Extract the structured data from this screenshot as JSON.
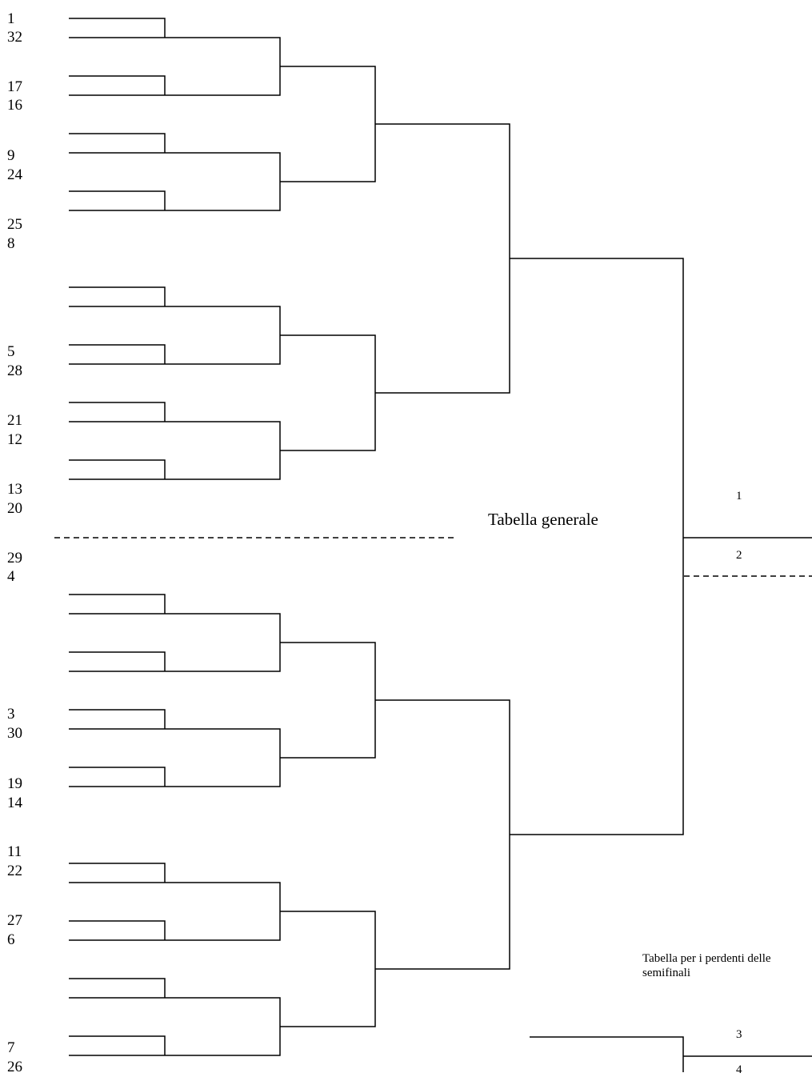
{
  "bracket": {
    "main_title": "Tabella generale",
    "consolation_title": "Tabella per i perdenti delle semifinali",
    "seeds": [
      "1",
      "32",
      "17",
      "16",
      "9",
      "24",
      "25",
      "8",
      "5",
      "28",
      "21",
      "12",
      "13",
      "20",
      "29",
      "4",
      "3",
      "30",
      "19",
      "14",
      "11",
      "22",
      "27",
      "6",
      "7",
      "26"
    ],
    "final_places": [
      "1",
      "2"
    ],
    "consolation_places": [
      "3",
      "4"
    ]
  }
}
